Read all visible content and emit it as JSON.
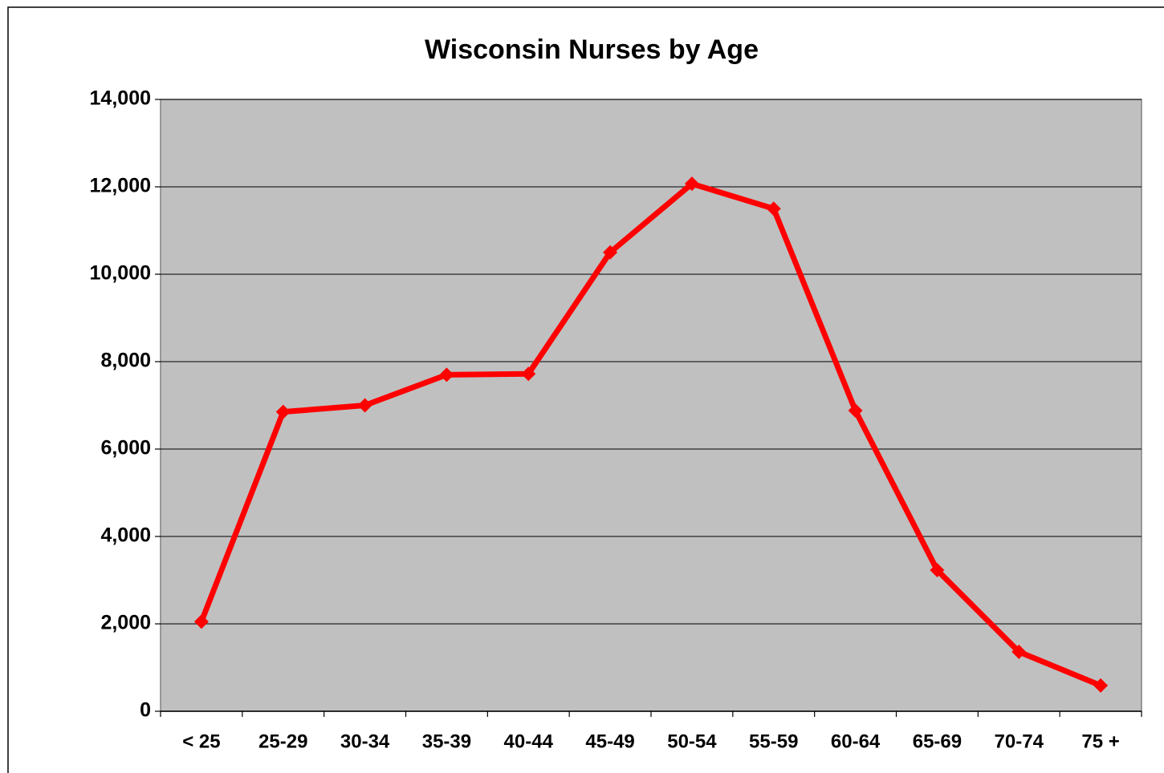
{
  "chart_data": {
    "type": "line",
    "title": "Wisconsin Nurses by Age",
    "categories": [
      "< 25",
      "25-29",
      "30-34",
      "35-39",
      "40-44",
      "45-49",
      "50-54",
      "55-59",
      "60-64",
      "65-69",
      "70-74",
      "75 +"
    ],
    "values": [
      2050,
      6850,
      7000,
      7700,
      7720,
      10500,
      12070,
      11500,
      6880,
      3230,
      1360,
      590
    ],
    "color": "#ff0000",
    "ylim": [
      0,
      14000
    ],
    "yticks": [
      0,
      {
        "value": 2000,
        "label": "2,000"
      },
      {
        "value": 4000,
        "label": "4,000"
      },
      {
        "value": 6000,
        "label": "6,000"
      },
      {
        "value": 8000,
        "label": "8,000"
      },
      {
        "value": 10000,
        "label": "10,000"
      },
      {
        "value": 12000,
        "label": "12,000"
      },
      {
        "value": 14000,
        "label": "14,000"
      }
    ],
    "grid": true
  }
}
